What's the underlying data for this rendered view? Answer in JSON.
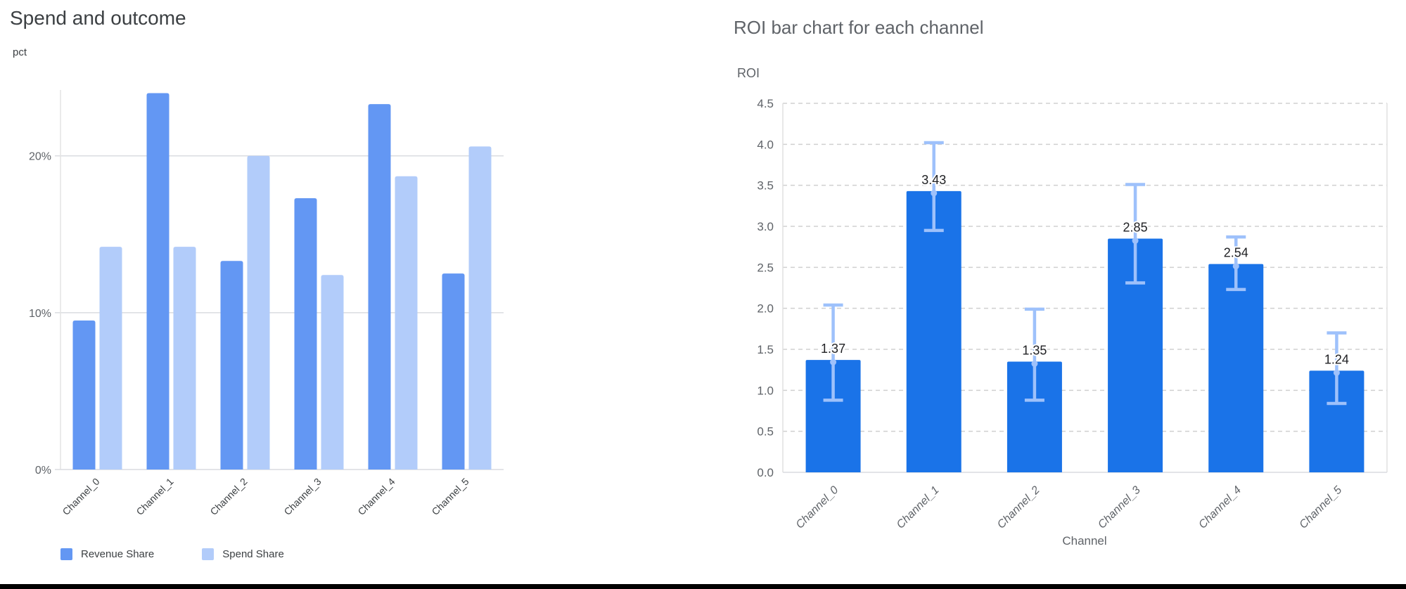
{
  "chart_data": [
    {
      "id": "spend_outcome",
      "type": "bar",
      "title": "Spend and outcome",
      "ylabel": "pct",
      "xlabel": "",
      "categories": [
        "Channel_0",
        "Channel_1",
        "Channel_2",
        "Channel_3",
        "Channel_4",
        "Channel_5"
      ],
      "series": [
        {
          "name": "Revenue Share",
          "color": "#6397f3",
          "values": [
            9.5,
            24.0,
            13.3,
            17.3,
            23.3,
            12.5
          ]
        },
        {
          "name": "Spend Share",
          "color": "#b2ccfa",
          "values": [
            14.2,
            14.2,
            20.0,
            12.4,
            18.7,
            20.6
          ]
        }
      ],
      "value_suffix": "%",
      "y_ticks": [
        "0%",
        "10%",
        "20%"
      ],
      "y_tick_values": [
        0,
        10,
        20
      ],
      "ylim": [
        0,
        24.2
      ],
      "grid": "solid",
      "legend_position": "bottom"
    },
    {
      "id": "roi_by_channel",
      "type": "bar",
      "title": "ROI bar chart for each channel",
      "ylabel": "ROI",
      "xlabel": "Channel",
      "categories": [
        "Channel_0",
        "Channel_1",
        "Channel_2",
        "Channel_3",
        "Channel_4",
        "Channel_5"
      ],
      "values": [
        1.37,
        3.43,
        1.35,
        2.85,
        2.54,
        1.24
      ],
      "value_labels": [
        "1.37",
        "3.43",
        "1.35",
        "2.85",
        "2.54",
        "1.24"
      ],
      "error_low": [
        0.88,
        2.95,
        0.88,
        2.31,
        2.23,
        0.84
      ],
      "error_high": [
        2.04,
        4.02,
        1.99,
        3.51,
        2.87,
        1.7
      ],
      "bar_color": "#1a73e8",
      "error_bar_color": "#9ec1fb",
      "value_label_color": "#202124",
      "y_ticks": [
        "0.0",
        "0.5",
        "1.0",
        "1.5",
        "2.0",
        "2.5",
        "3.0",
        "3.5",
        "4.0",
        "4.5"
      ],
      "ylim": [
        0,
        4.5
      ],
      "grid": "dashed",
      "legend_position": "none"
    }
  ],
  "window": {
    "bottom_bar_color": "#000000",
    "background_color": "#ffffff"
  }
}
